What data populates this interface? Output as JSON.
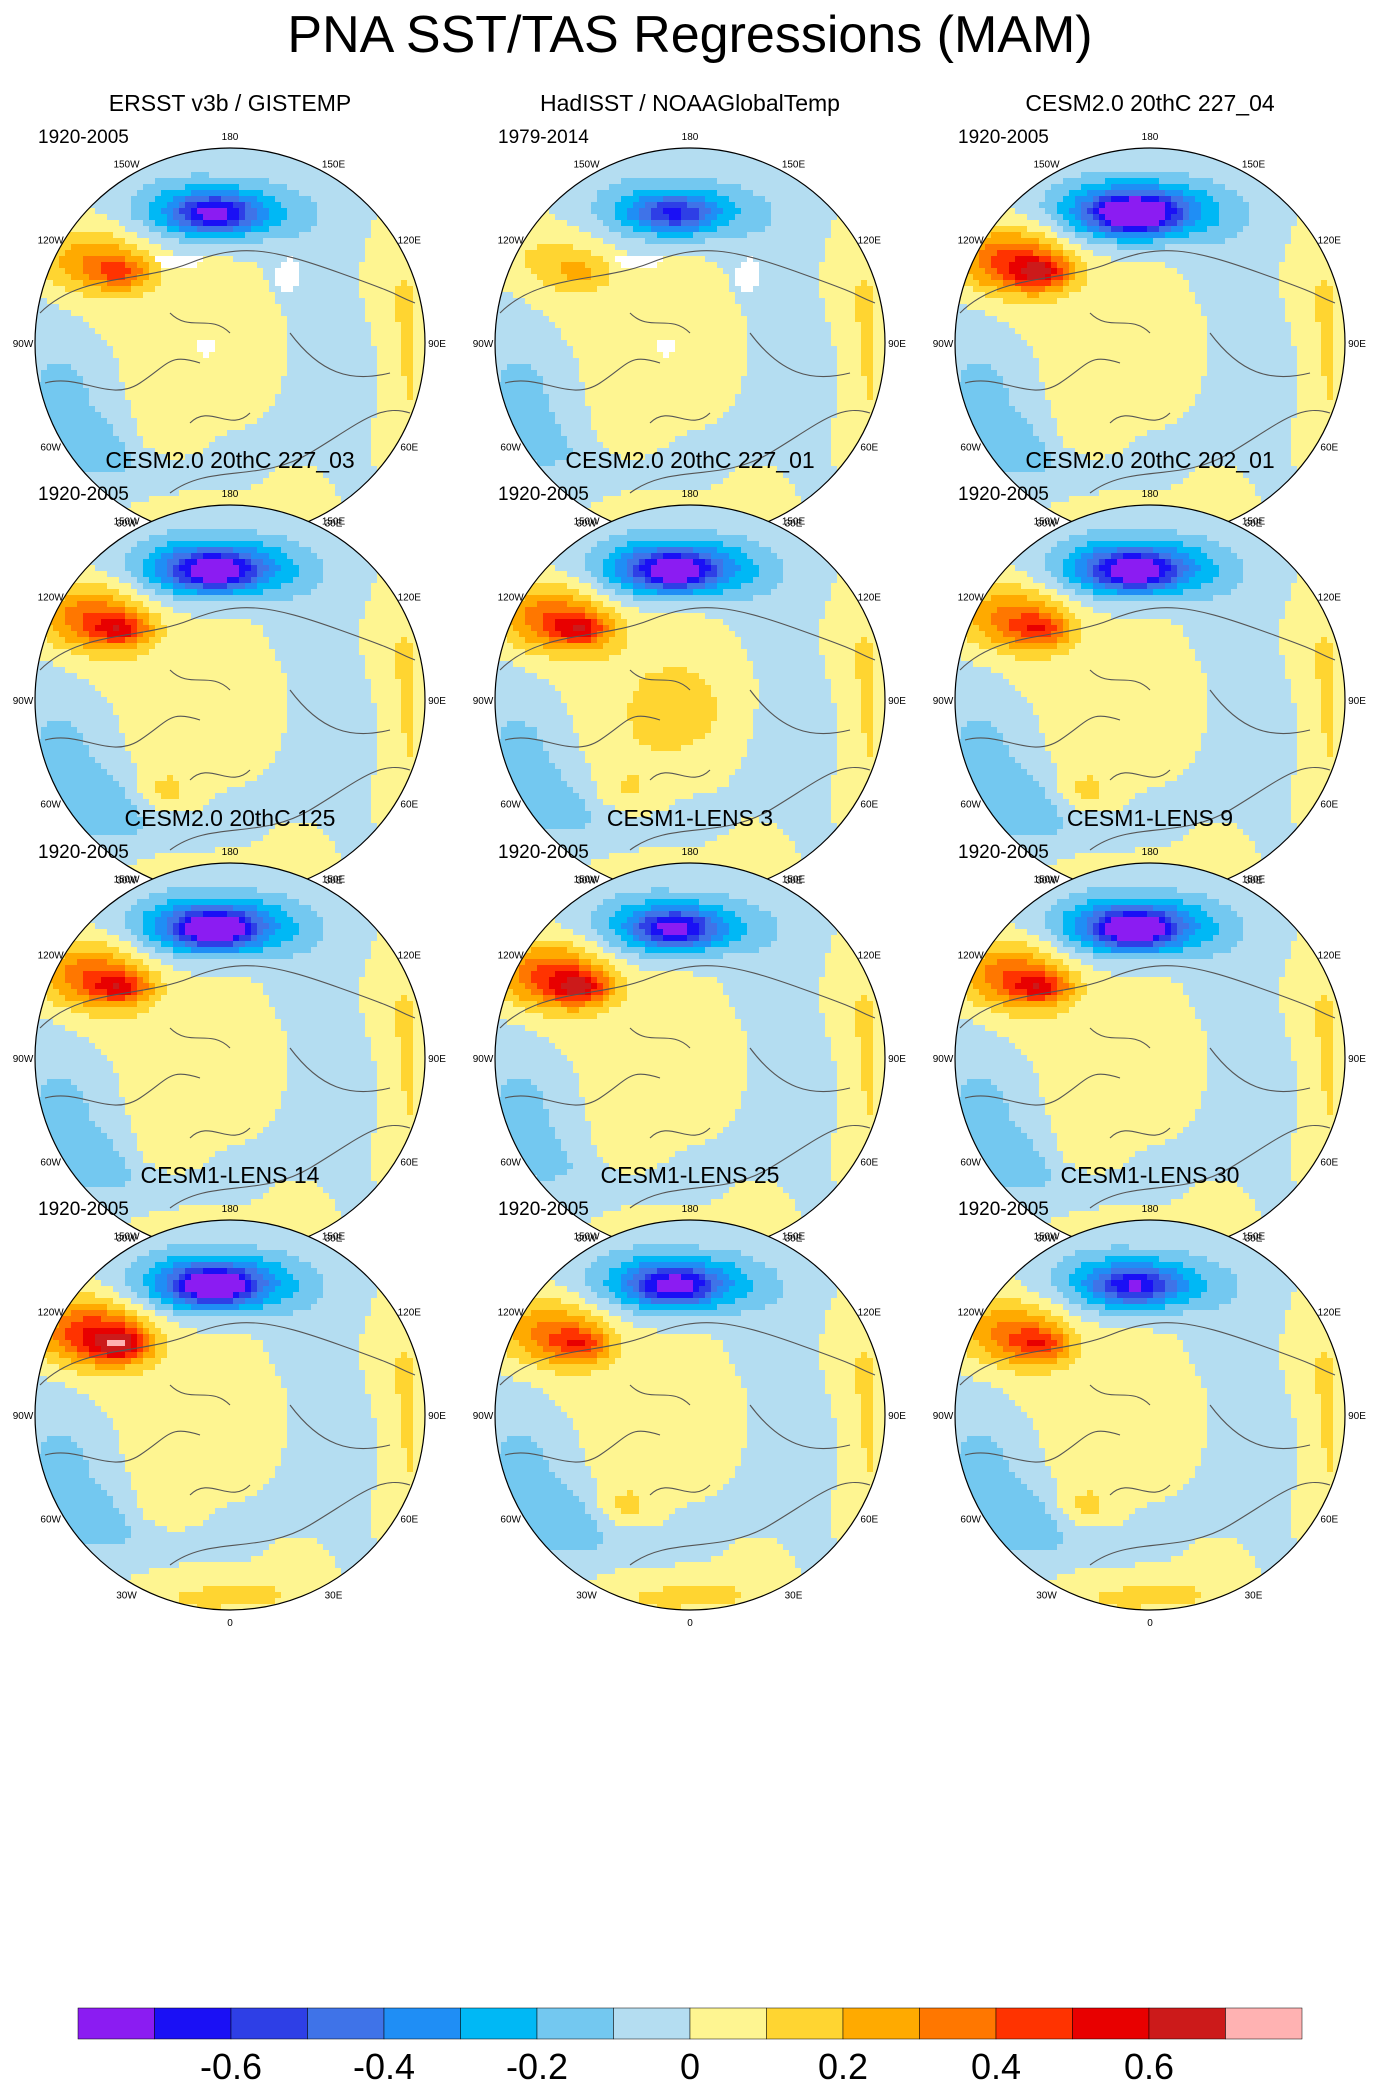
{
  "title": "PNA SST/TAS Regressions (MAM)",
  "panels": [
    {
      "title": "ERSST v3b / GISTEMP",
      "period": "1920-2005",
      "pattern": {
        "pacific_blue": 0.35,
        "pacific_center_blue": 0.45,
        "na_warm": 0.3,
        "arctic_warm": 0.05,
        "atlantic": 0.15,
        "missing": true
      }
    },
    {
      "title": "HadISST / NOAAGlobalTemp",
      "period": "1979-2014",
      "pattern": {
        "pacific_blue": 0.3,
        "pacific_center_blue": 0.35,
        "na_warm": 0.15,
        "arctic_warm": 0.05,
        "atlantic": 0.1,
        "missing": true
      }
    },
    {
      "title": "CESM2.0 20thC 227_04",
      "period": "1920-2005",
      "pattern": {
        "pacific_blue": 0.5,
        "pacific_center_blue": 0.6,
        "na_warm": 0.45,
        "arctic_warm": 0.05,
        "atlantic": 0.15,
        "missing": false
      }
    },
    {
      "title": "CESM2.0 20thC 227_03",
      "period": "1920-2005",
      "pattern": {
        "pacific_blue": 0.45,
        "pacific_center_blue": 0.5,
        "na_warm": 0.4,
        "arctic_warm": 0.05,
        "atlantic": 0.2,
        "missing": false
      }
    },
    {
      "title": "CESM2.0 20thC 227_01",
      "period": "1920-2005",
      "pattern": {
        "pacific_blue": 0.45,
        "pacific_center_blue": 0.5,
        "na_warm": 0.4,
        "arctic_warm": 0.1,
        "atlantic": 0.15,
        "missing": false
      }
    },
    {
      "title": "CESM2.0 20thC 202_01",
      "period": "1920-2005",
      "pattern": {
        "pacific_blue": 0.45,
        "pacific_center_blue": 0.5,
        "na_warm": 0.35,
        "arctic_warm": 0.05,
        "atlantic": 0.2,
        "missing": false
      }
    },
    {
      "title": "CESM2.0 20thC 125",
      "period": "1920-2005",
      "pattern": {
        "pacific_blue": 0.45,
        "pacific_center_blue": 0.55,
        "na_warm": 0.4,
        "arctic_warm": 0.05,
        "atlantic": 0.15,
        "missing": false
      }
    },
    {
      "title": "CESM1-LENS 3",
      "period": "1920-2005",
      "pattern": {
        "pacific_blue": 0.35,
        "pacific_center_blue": 0.45,
        "na_warm": 0.45,
        "arctic_warm": 0.05,
        "atlantic": 0.1,
        "missing": false
      }
    },
    {
      "title": "CESM1-LENS 9",
      "period": "1920-2005",
      "pattern": {
        "pacific_blue": 0.45,
        "pacific_center_blue": 0.55,
        "na_warm": 0.4,
        "arctic_warm": 0.05,
        "atlantic": 0.15,
        "missing": false
      }
    },
    {
      "title": "CESM1-LENS 14",
      "period": "1920-2005",
      "pattern": {
        "pacific_blue": 0.45,
        "pacific_center_blue": 0.55,
        "na_warm": 0.5,
        "arctic_warm": 0.05,
        "atlantic": 0.15,
        "missing": false
      }
    },
    {
      "title": "CESM1-LENS 25",
      "period": "1920-2005",
      "pattern": {
        "pacific_blue": 0.4,
        "pacific_center_blue": 0.45,
        "na_warm": 0.35,
        "arctic_warm": 0.05,
        "atlantic": 0.2,
        "missing": false
      }
    },
    {
      "title": "CESM1-LENS 30",
      "period": "1920-2005",
      "pattern": {
        "pacific_blue": 0.35,
        "pacific_center_blue": 0.4,
        "na_warm": 0.35,
        "arctic_warm": 0.05,
        "atlantic": 0.2,
        "missing": false
      }
    }
  ],
  "longitude_labels": [
    "180",
    "150E",
    "120E",
    "90E",
    "60E",
    "30E",
    "0",
    "30W",
    "60W",
    "90W",
    "120W",
    "150W"
  ],
  "colorbar": {
    "colors": [
      "#8B1CF2",
      "#1A10F5",
      "#2E3FE6",
      "#3F73E8",
      "#1F8EF5",
      "#00B8F5",
      "#73C8F0",
      "#B4DDF1",
      "#FEF591",
      "#FFD531",
      "#FFAA00",
      "#FF7700",
      "#FF3300",
      "#E80000",
      "#CC1A1A",
      "#FFB2B2"
    ],
    "ticks": [
      -0.6,
      -0.4,
      -0.2,
      0,
      0.2,
      0.4,
      0.6
    ],
    "tick_labels": [
      "-0.6",
      "-0.4",
      "-0.2",
      "0",
      "0.2",
      "0.4",
      "0.6"
    ],
    "levels": [
      -0.7,
      -0.6,
      -0.5,
      -0.4,
      -0.3,
      -0.2,
      -0.1,
      0,
      0.1,
      0.2,
      0.3,
      0.4,
      0.5,
      0.6,
      0.7
    ]
  }
}
